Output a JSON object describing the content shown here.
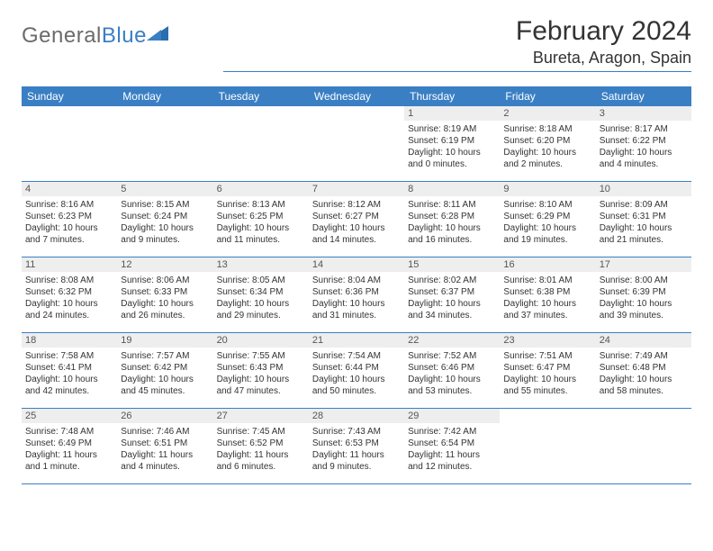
{
  "logo": {
    "text1": "General",
    "text2": "Blue"
  },
  "colors": {
    "header_bar": "#3a7fc4",
    "day_num_bg": "#eeeeee",
    "text": "#333333",
    "logo_gray": "#6b6b6b",
    "logo_blue": "#3a7fc4",
    "background": "#ffffff"
  },
  "typography": {
    "month_title_pt": 30,
    "location_pt": 18,
    "weekday_pt": 12,
    "daynum_pt": 11,
    "body_pt": 10
  },
  "title": "February 2024",
  "location": "Bureta, Aragon, Spain",
  "weekdays": [
    "Sunday",
    "Monday",
    "Tuesday",
    "Wednesday",
    "Thursday",
    "Friday",
    "Saturday"
  ],
  "weeks": [
    [
      {
        "num": "",
        "lines": []
      },
      {
        "num": "",
        "lines": []
      },
      {
        "num": "",
        "lines": []
      },
      {
        "num": "",
        "lines": []
      },
      {
        "num": "1",
        "lines": [
          "Sunrise: 8:19 AM",
          "Sunset: 6:19 PM",
          "Daylight: 10 hours",
          "and 0 minutes."
        ]
      },
      {
        "num": "2",
        "lines": [
          "Sunrise: 8:18 AM",
          "Sunset: 6:20 PM",
          "Daylight: 10 hours",
          "and 2 minutes."
        ]
      },
      {
        "num": "3",
        "lines": [
          "Sunrise: 8:17 AM",
          "Sunset: 6:22 PM",
          "Daylight: 10 hours",
          "and 4 minutes."
        ]
      }
    ],
    [
      {
        "num": "4",
        "lines": [
          "Sunrise: 8:16 AM",
          "Sunset: 6:23 PM",
          "Daylight: 10 hours",
          "and 7 minutes."
        ]
      },
      {
        "num": "5",
        "lines": [
          "Sunrise: 8:15 AM",
          "Sunset: 6:24 PM",
          "Daylight: 10 hours",
          "and 9 minutes."
        ]
      },
      {
        "num": "6",
        "lines": [
          "Sunrise: 8:13 AM",
          "Sunset: 6:25 PM",
          "Daylight: 10 hours",
          "and 11 minutes."
        ]
      },
      {
        "num": "7",
        "lines": [
          "Sunrise: 8:12 AM",
          "Sunset: 6:27 PM",
          "Daylight: 10 hours",
          "and 14 minutes."
        ]
      },
      {
        "num": "8",
        "lines": [
          "Sunrise: 8:11 AM",
          "Sunset: 6:28 PM",
          "Daylight: 10 hours",
          "and 16 minutes."
        ]
      },
      {
        "num": "9",
        "lines": [
          "Sunrise: 8:10 AM",
          "Sunset: 6:29 PM",
          "Daylight: 10 hours",
          "and 19 minutes."
        ]
      },
      {
        "num": "10",
        "lines": [
          "Sunrise: 8:09 AM",
          "Sunset: 6:31 PM",
          "Daylight: 10 hours",
          "and 21 minutes."
        ]
      }
    ],
    [
      {
        "num": "11",
        "lines": [
          "Sunrise: 8:08 AM",
          "Sunset: 6:32 PM",
          "Daylight: 10 hours",
          "and 24 minutes."
        ]
      },
      {
        "num": "12",
        "lines": [
          "Sunrise: 8:06 AM",
          "Sunset: 6:33 PM",
          "Daylight: 10 hours",
          "and 26 minutes."
        ]
      },
      {
        "num": "13",
        "lines": [
          "Sunrise: 8:05 AM",
          "Sunset: 6:34 PM",
          "Daylight: 10 hours",
          "and 29 minutes."
        ]
      },
      {
        "num": "14",
        "lines": [
          "Sunrise: 8:04 AM",
          "Sunset: 6:36 PM",
          "Daylight: 10 hours",
          "and 31 minutes."
        ]
      },
      {
        "num": "15",
        "lines": [
          "Sunrise: 8:02 AM",
          "Sunset: 6:37 PM",
          "Daylight: 10 hours",
          "and 34 minutes."
        ]
      },
      {
        "num": "16",
        "lines": [
          "Sunrise: 8:01 AM",
          "Sunset: 6:38 PM",
          "Daylight: 10 hours",
          "and 37 minutes."
        ]
      },
      {
        "num": "17",
        "lines": [
          "Sunrise: 8:00 AM",
          "Sunset: 6:39 PM",
          "Daylight: 10 hours",
          "and 39 minutes."
        ]
      }
    ],
    [
      {
        "num": "18",
        "lines": [
          "Sunrise: 7:58 AM",
          "Sunset: 6:41 PM",
          "Daylight: 10 hours",
          "and 42 minutes."
        ]
      },
      {
        "num": "19",
        "lines": [
          "Sunrise: 7:57 AM",
          "Sunset: 6:42 PM",
          "Daylight: 10 hours",
          "and 45 minutes."
        ]
      },
      {
        "num": "20",
        "lines": [
          "Sunrise: 7:55 AM",
          "Sunset: 6:43 PM",
          "Daylight: 10 hours",
          "and 47 minutes."
        ]
      },
      {
        "num": "21",
        "lines": [
          "Sunrise: 7:54 AM",
          "Sunset: 6:44 PM",
          "Daylight: 10 hours",
          "and 50 minutes."
        ]
      },
      {
        "num": "22",
        "lines": [
          "Sunrise: 7:52 AM",
          "Sunset: 6:46 PM",
          "Daylight: 10 hours",
          "and 53 minutes."
        ]
      },
      {
        "num": "23",
        "lines": [
          "Sunrise: 7:51 AM",
          "Sunset: 6:47 PM",
          "Daylight: 10 hours",
          "and 55 minutes."
        ]
      },
      {
        "num": "24",
        "lines": [
          "Sunrise: 7:49 AM",
          "Sunset: 6:48 PM",
          "Daylight: 10 hours",
          "and 58 minutes."
        ]
      }
    ],
    [
      {
        "num": "25",
        "lines": [
          "Sunrise: 7:48 AM",
          "Sunset: 6:49 PM",
          "Daylight: 11 hours",
          "and 1 minute."
        ]
      },
      {
        "num": "26",
        "lines": [
          "Sunrise: 7:46 AM",
          "Sunset: 6:51 PM",
          "Daylight: 11 hours",
          "and 4 minutes."
        ]
      },
      {
        "num": "27",
        "lines": [
          "Sunrise: 7:45 AM",
          "Sunset: 6:52 PM",
          "Daylight: 11 hours",
          "and 6 minutes."
        ]
      },
      {
        "num": "28",
        "lines": [
          "Sunrise: 7:43 AM",
          "Sunset: 6:53 PM",
          "Daylight: 11 hours",
          "and 9 minutes."
        ]
      },
      {
        "num": "29",
        "lines": [
          "Sunrise: 7:42 AM",
          "Sunset: 6:54 PM",
          "Daylight: 11 hours",
          "and 12 minutes."
        ]
      },
      {
        "num": "",
        "lines": []
      },
      {
        "num": "",
        "lines": []
      }
    ]
  ]
}
